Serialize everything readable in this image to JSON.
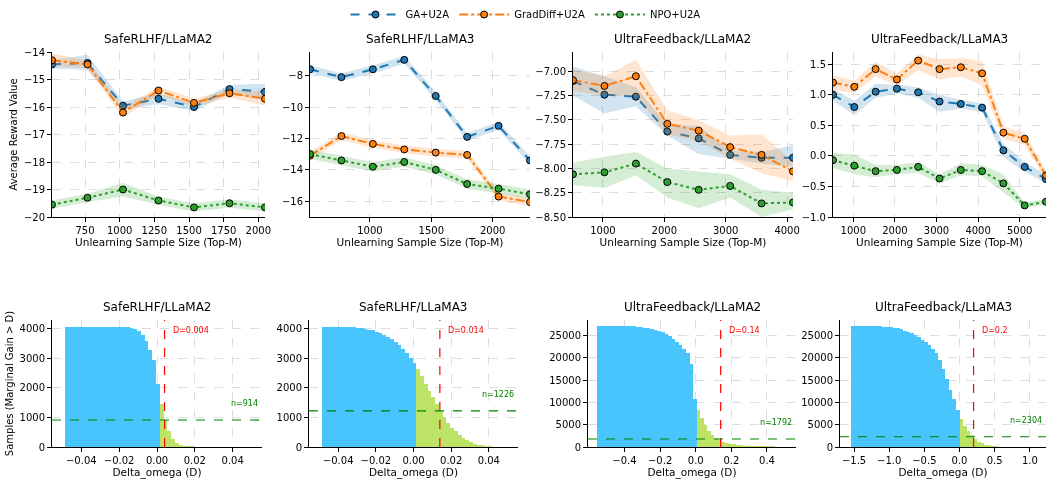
{
  "chart_data": [
    {
      "type": "line",
      "title": "SafeRLHF/LLaMA2",
      "xlabel": "Unlearning Sample Size (Top-M)",
      "ylabel": "Average Reward Value",
      "legend": "top",
      "grid": true,
      "marker": "circle",
      "x": [
        512,
        768,
        1024,
        1280,
        1536,
        1792,
        2048
      ],
      "xlim": [
        512,
        2048
      ],
      "xticks": [
        750,
        1000,
        1250,
        1500,
        1750,
        2000
      ],
      "ylim": [
        -20,
        -14
      ],
      "yticks": [
        {
          "value": -20,
          "label": "−20"
        },
        {
          "value": -19,
          "label": "−19"
        },
        {
          "value": -18,
          "label": "−18"
        },
        {
          "value": -17,
          "label": "−17"
        },
        {
          "value": -16,
          "label": "−16"
        },
        {
          "value": -15,
          "label": "−15"
        },
        {
          "value": -14,
          "label": "−14"
        }
      ],
      "series": [
        {
          "name": "GA+U2A",
          "color": "#1f77b4",
          "line_style": "dashed",
          "values": [
            -14.45,
            -14.4,
            -15.95,
            -15.7,
            -16.0,
            -15.35,
            -15.45
          ],
          "lower": [
            -14.6,
            -14.65,
            -16.1,
            -15.9,
            -16.15,
            -15.5,
            -15.75
          ],
          "upper": [
            -14.3,
            -14.1,
            -15.8,
            -15.5,
            -15.85,
            -15.2,
            -15.15
          ]
        },
        {
          "name": "GradDiff+U2A",
          "color": "#ff7f0e",
          "line_style": "dashdot",
          "values": [
            -14.3,
            -14.45,
            -16.2,
            -15.4,
            -15.85,
            -15.5,
            -15.7
          ],
          "lower": [
            -14.5,
            -14.6,
            -16.4,
            -15.55,
            -16.0,
            -15.65,
            -15.95
          ],
          "upper": [
            -14.05,
            -14.3,
            -16.0,
            -15.25,
            -15.7,
            -15.35,
            -15.45
          ]
        },
        {
          "name": "NPO+U2A",
          "color": "#2ca02c",
          "line_style": "dotted",
          "values": [
            -19.55,
            -19.3,
            -19.0,
            -19.4,
            -19.65,
            -19.5,
            -19.65
          ],
          "lower": [
            -19.7,
            -19.45,
            -19.25,
            -19.55,
            -19.8,
            -19.65,
            -19.8
          ],
          "upper": [
            -19.4,
            -19.15,
            -18.75,
            -19.25,
            -19.5,
            -19.35,
            -19.5
          ]
        }
      ]
    },
    {
      "type": "line",
      "title": "SafeRLHF/LLaMA3",
      "xlabel": "Unlearning Sample Size (Top-M)",
      "grid": true,
      "marker": "circle",
      "x": [
        512,
        768,
        1024,
        1280,
        1536,
        1792,
        2048,
        2304
      ],
      "xlim": [
        512,
        2304
      ],
      "xticks": [
        1000,
        1500,
        2000
      ],
      "ylim": [
        -17,
        -6.5
      ],
      "yticks": [
        {
          "value": -16,
          "label": "−16"
        },
        {
          "value": -14,
          "label": "−14"
        },
        {
          "value": -12,
          "label": "−12"
        },
        {
          "value": -10,
          "label": "−10"
        },
        {
          "value": -8,
          "label": "−8"
        }
      ],
      "series": [
        {
          "color": "#1f77b4",
          "line_style": "dashed",
          "values": [
            -7.6,
            -8.1,
            -7.6,
            -7.0,
            -9.3,
            -11.9,
            -11.2,
            -13.4
          ],
          "lower": [
            -7.85,
            -8.35,
            -7.85,
            -7.25,
            -9.55,
            -12.15,
            -11.45,
            -13.65
          ],
          "upper": [
            -7.35,
            -7.85,
            -7.35,
            -6.75,
            -9.05,
            -11.65,
            -10.95,
            -13.15
          ]
        },
        {
          "color": "#ff7f0e",
          "line_style": "dashdot",
          "values": [
            -13.1,
            -11.85,
            -12.35,
            -12.7,
            -12.9,
            -13.05,
            -15.7,
            -16.05
          ],
          "lower": [
            -13.35,
            -12.1,
            -12.6,
            -12.95,
            -13.15,
            -13.3,
            -15.95,
            -16.3
          ],
          "upper": [
            -12.85,
            -11.6,
            -12.1,
            -12.45,
            -12.65,
            -12.8,
            -15.45,
            -15.8
          ]
        },
        {
          "color": "#2ca02c",
          "line_style": "dotted",
          "values": [
            -13.0,
            -13.4,
            -13.8,
            -13.5,
            -14.0,
            -14.9,
            -15.2,
            -15.55
          ],
          "lower": [
            -13.3,
            -13.7,
            -14.1,
            -13.8,
            -14.3,
            -15.2,
            -15.5,
            -15.85
          ],
          "upper": [
            -12.7,
            -13.1,
            -13.5,
            -13.2,
            -13.7,
            -14.6,
            -14.9,
            -15.25
          ]
        }
      ]
    },
    {
      "type": "line",
      "title": "UltraFeedback/LLaMA2",
      "xlabel": "Unlearning Sample Size (Top-M)",
      "grid": true,
      "marker": "circle",
      "x": [
        512,
        1024,
        1536,
        2048,
        2560,
        3072,
        3584,
        4096
      ],
      "xlim": [
        512,
        4096
      ],
      "xticks": [
        1000,
        2000,
        3000,
        4000
      ],
      "ylim": [
        -8.5,
        -6.8
      ],
      "yticks": [
        {
          "value": -8.5,
          "label": "−8.50"
        },
        {
          "value": -8.25,
          "label": "−8.25"
        },
        {
          "value": -8.0,
          "label": "−8.00"
        },
        {
          "value": -7.75,
          "label": "−7.75"
        },
        {
          "value": -7.5,
          "label": "−7.50"
        },
        {
          "value": -7.25,
          "label": "−7.25"
        },
        {
          "value": -7.0,
          "label": "−7.00"
        }
      ],
      "series": [
        {
          "color": "#1f77b4",
          "line_style": "dashed",
          "values": [
            -7.1,
            -7.24,
            -7.26,
            -7.62,
            -7.69,
            -7.86,
            -7.89,
            -7.89
          ],
          "lower": [
            -7.25,
            -7.43,
            -7.36,
            -7.66,
            -7.85,
            -7.9,
            -7.95,
            -7.98
          ],
          "upper": [
            -6.95,
            -7.05,
            -7.16,
            -7.55,
            -7.56,
            -7.82,
            -7.83,
            -7.76
          ]
        },
        {
          "color": "#ff7f0e",
          "line_style": "dashdot",
          "values": [
            -7.09,
            -7.15,
            -7.05,
            -7.54,
            -7.61,
            -7.78,
            -7.86,
            -8.03
          ],
          "lower": [
            -7.2,
            -7.25,
            -7.25,
            -7.65,
            -7.72,
            -7.9,
            -8.05,
            -8.13
          ],
          "upper": [
            -6.98,
            -7.05,
            -6.88,
            -7.4,
            -7.5,
            -7.66,
            -7.65,
            -7.93
          ]
        },
        {
          "color": "#2ca02c",
          "line_style": "dotted",
          "values": [
            -8.06,
            -8.04,
            -7.95,
            -8.14,
            -8.22,
            -8.18,
            -8.36,
            -8.35
          ],
          "lower": [
            -8.17,
            -8.2,
            -8.07,
            -8.3,
            -8.41,
            -8.3,
            -8.5,
            -8.42
          ],
          "upper": [
            -7.94,
            -7.88,
            -7.83,
            -8.0,
            -8.03,
            -8.06,
            -8.22,
            -8.25
          ]
        }
      ]
    },
    {
      "type": "line",
      "title": "UltraFeedback/LLaMA3",
      "xlabel": "Unlearning Sample Size (Top-M)",
      "grid": true,
      "marker": "circle",
      "x": [
        512,
        1024,
        1536,
        2048,
        2560,
        3072,
        3584,
        4096,
        4608,
        5120,
        5632
      ],
      "xlim": [
        512,
        5632
      ],
      "xticks": [
        1000,
        2000,
        3000,
        4000,
        5000
      ],
      "ylim": [
        -1.0,
        1.7
      ],
      "yticks": [
        {
          "value": -1.0,
          "label": "−1.0"
        },
        {
          "value": -0.5,
          "label": "−0.5"
        },
        {
          "value": 0,
          "label": "0.0"
        },
        {
          "value": 0.5,
          "label": "0.5"
        },
        {
          "value": 1.0,
          "label": "1.0"
        },
        {
          "value": 1.5,
          "label": "1.5"
        }
      ],
      "series": [
        {
          "color": "#1f77b4",
          "line_style": "dashed",
          "values": [
            1.0,
            0.8,
            1.05,
            1.1,
            1.04,
            0.89,
            0.85,
            0.79,
            0.09,
            -0.18,
            -0.38
          ],
          "lower": [
            0.9,
            0.67,
            0.95,
            1.02,
            0.95,
            0.72,
            0.78,
            0.72,
            -0.02,
            -0.26,
            -0.45
          ],
          "upper": [
            1.1,
            0.9,
            1.18,
            1.17,
            1.12,
            1.0,
            0.92,
            0.86,
            0.2,
            -0.1,
            -0.3
          ]
        },
        {
          "color": "#ff7f0e",
          "line_style": "dashdot",
          "values": [
            1.2,
            1.13,
            1.42,
            1.25,
            1.56,
            1.42,
            1.45,
            1.35,
            0.38,
            0.28,
            -0.32
          ],
          "lower": [
            1.08,
            1.03,
            1.3,
            1.15,
            1.4,
            1.25,
            1.3,
            1.15,
            0.28,
            0.18,
            -0.4
          ],
          "upper": [
            1.32,
            1.23,
            1.54,
            1.35,
            1.66,
            1.58,
            1.6,
            1.55,
            0.48,
            0.38,
            -0.24
          ]
        },
        {
          "color": "#2ca02c",
          "line_style": "dotted",
          "values": [
            -0.07,
            -0.16,
            -0.25,
            -0.23,
            -0.18,
            -0.37,
            -0.23,
            -0.25,
            -0.45,
            -0.81,
            -0.75
          ],
          "lower": [
            -0.2,
            -0.3,
            -0.35,
            -0.3,
            -0.28,
            -0.45,
            -0.32,
            -0.33,
            -0.6,
            -0.85,
            -0.8
          ],
          "upper": [
            0.05,
            0.02,
            -0.15,
            -0.15,
            -0.1,
            -0.3,
            -0.12,
            -0.15,
            -0.3,
            -0.77,
            -0.7
          ]
        }
      ]
    },
    {
      "type": "histogram",
      "title": "SafeRLHF/LLaMA2",
      "xlabel": "Delta_omega (D)",
      "ylabel": "Samples (Marginal Gain > D)",
      "grid": true,
      "xlim": [
        -0.0555,
        0.0555
      ],
      "xticks": [
        {
          "value": -0.04,
          "label": "−0.04"
        },
        {
          "value": -0.02,
          "label": "−0.02"
        },
        {
          "value": 0,
          "label": "0.00"
        },
        {
          "value": 0.02,
          "label": "0.02"
        },
        {
          "value": 0.04,
          "label": "0.04"
        }
      ],
      "ylim": [
        0,
        4300
      ],
      "yticks": [
        0,
        1000,
        2000,
        3000,
        4000
      ],
      "bins": [
        -0.0485,
        -0.0465,
        -0.0445,
        -0.0425,
        -0.0405,
        -0.0385,
        -0.0365,
        -0.0345,
        -0.0325,
        -0.0305,
        -0.0285,
        -0.0265,
        -0.0245,
        -0.0225,
        -0.0205,
        -0.0185,
        -0.0165,
        -0.0145,
        -0.0125,
        -0.0105,
        -0.0085,
        -0.0065,
        -0.0045,
        -0.0025,
        -0.0005,
        0.0015,
        0.0035,
        0.0055,
        0.0075,
        0.0095,
        0.0115,
        0.0135,
        0.0155,
        0.0175,
        0.0195
      ],
      "values": [
        4080,
        4080,
        4080,
        4080,
        4080,
        4080,
        4080,
        4080,
        4080,
        4080,
        4080,
        4080,
        4080,
        4080,
        4080,
        4080,
        4060,
        4040,
        4000,
        3930,
        3800,
        3600,
        3300,
        2950,
        2150,
        1440,
        920,
        540,
        270,
        130,
        60,
        30,
        20,
        10
      ],
      "colors": [
        "#47c5fc",
        "#47c5fc",
        "#47c5fc",
        "#47c5fc",
        "#47c5fc",
        "#47c5fc",
        "#47c5fc",
        "#47c5fc",
        "#47c5fc",
        "#47c5fc",
        "#47c5fc",
        "#47c5fc",
        "#47c5fc",
        "#47c5fc",
        "#47c5fc",
        "#47c5fc",
        "#47c5fc",
        "#47c5fc",
        "#47c5fc",
        "#47c5fc",
        "#47c5fc",
        "#47c5fc",
        "#47c5fc",
        "#47c5fc",
        "#47c5fc",
        "#bde366",
        "#bde366",
        "#bde366",
        "#bde366",
        "#bde366",
        "#bde366",
        "#bde366",
        "#bde366",
        "#bde366"
      ],
      "ref_lines": [
        {
          "axis": "x",
          "value": 0.004,
          "label": "D=0.004",
          "color": "#ff0000",
          "line_style": "dashed"
        },
        {
          "axis": "y",
          "value": 914,
          "label": "n=914",
          "color": "#008000",
          "line_style": "dashed"
        }
      ]
    },
    {
      "type": "histogram",
      "title": "SafeRLHF/LLaMA3",
      "xlabel": "Delta_omega (D)",
      "grid": true,
      "xlim": [
        -0.0555,
        0.0555
      ],
      "xticks": [
        {
          "value": -0.04,
          "label": "−0.04"
        },
        {
          "value": -0.02,
          "label": "−0.02"
        },
        {
          "value": 0,
          "label": "0.00"
        },
        {
          "value": 0.02,
          "label": "0.02"
        },
        {
          "value": 0.04,
          "label": "0.04"
        }
      ],
      "ylim": [
        0,
        4300
      ],
      "yticks": [
        0,
        1000,
        2000,
        3000,
        4000
      ],
      "bins": [
        -0.0485,
        -0.0465,
        -0.0445,
        -0.0425,
        -0.0405,
        -0.0385,
        -0.0365,
        -0.0345,
        -0.0325,
        -0.0305,
        -0.0285,
        -0.0265,
        -0.0245,
        -0.0225,
        -0.0205,
        -0.0185,
        -0.0165,
        -0.0145,
        -0.0125,
        -0.0105,
        -0.0085,
        -0.0065,
        -0.0045,
        -0.0025,
        -0.0005,
        0.0015,
        0.0035,
        0.0055,
        0.0075,
        0.0095,
        0.0115,
        0.0135,
        0.0155,
        0.0175,
        0.0195,
        0.0215,
        0.0235,
        0.0255,
        0.0275,
        0.0295,
        0.0315,
        0.0335,
        0.0355,
        0.0375,
        0.0395,
        0.0415
      ],
      "values": [
        4080,
        4080,
        4080,
        4080,
        4080,
        4070,
        4070,
        4060,
        4050,
        4040,
        4020,
        4000,
        3970,
        3950,
        3900,
        3850,
        3800,
        3720,
        3640,
        3550,
        3450,
        3310,
        3180,
        3020,
        2840,
        2650,
        2400,
        2150,
        1900,
        1680,
        1440,
        1220,
        1000,
        820,
        660,
        530,
        410,
        310,
        230,
        160,
        110,
        80,
        50,
        30,
        20
      ],
      "colors": [
        "#47c5fc",
        "#47c5fc",
        "#47c5fc",
        "#47c5fc",
        "#47c5fc",
        "#47c5fc",
        "#47c5fc",
        "#47c5fc",
        "#47c5fc",
        "#47c5fc",
        "#47c5fc",
        "#47c5fc",
        "#47c5fc",
        "#47c5fc",
        "#47c5fc",
        "#47c5fc",
        "#47c5fc",
        "#47c5fc",
        "#47c5fc",
        "#47c5fc",
        "#47c5fc",
        "#47c5fc",
        "#47c5fc",
        "#47c5fc",
        "#47c5fc",
        "#bde366",
        "#bde366",
        "#bde366",
        "#bde366",
        "#bde366",
        "#bde366",
        "#bde366",
        "#bde366",
        "#bde366",
        "#bde366",
        "#bde366",
        "#bde366",
        "#bde366",
        "#bde366",
        "#bde366",
        "#bde366",
        "#bde366",
        "#bde366",
        "#bde366",
        "#bde366"
      ],
      "ref_lines": [
        {
          "axis": "x",
          "value": 0.014,
          "label": "D=0.014",
          "color": "#ff0000",
          "line_style": "dashed"
        },
        {
          "axis": "y",
          "value": 1226,
          "label": "n=1226",
          "color": "#008000",
          "line_style": "dashed"
        }
      ]
    },
    {
      "type": "histogram",
      "title": "UltraFeedback/LLaMA2",
      "xlabel": "Delta_omega (D)",
      "grid": true,
      "xlim": [
        -0.605,
        0.563
      ],
      "xticks": [
        {
          "value": -0.4,
          "label": "−0.4"
        },
        {
          "value": -0.2,
          "label": "−0.2"
        },
        {
          "value": 0,
          "label": "0.0"
        },
        {
          "value": 0.2,
          "label": "0.2"
        },
        {
          "value": 0.4,
          "label": "0.4"
        }
      ],
      "ylim": [
        0,
        28500
      ],
      "yticks": [
        0,
        5000,
        10000,
        15000,
        20000,
        25000
      ],
      "bins": [
        -0.555,
        -0.535,
        -0.515,
        -0.495,
        -0.475,
        -0.455,
        -0.435,
        -0.415,
        -0.395,
        -0.375,
        -0.355,
        -0.335,
        -0.315,
        -0.295,
        -0.275,
        -0.255,
        -0.235,
        -0.215,
        -0.195,
        -0.175,
        -0.155,
        -0.135,
        -0.115,
        -0.095,
        -0.075,
        -0.055,
        -0.035,
        -0.015,
        0.005,
        0.025,
        0.045,
        0.065,
        0.085,
        0.105,
        0.125,
        0.145,
        0.165,
        0.185,
        0.205,
        0.225,
        0.245,
        0.265,
        0.285,
        0.305,
        0.325,
        0.345,
        0.365,
        0.385,
        0.405,
        0.425,
        0.445
      ],
      "values": [
        27200,
        27200,
        27200,
        27200,
        27200,
        27200,
        27200,
        27200,
        27200,
        27200,
        27100,
        27000,
        26900,
        26800,
        26700,
        26500,
        26300,
        26100,
        25800,
        25400,
        24900,
        24300,
        23600,
        22900,
        22000,
        21000,
        18700,
        10800,
        8300,
        6500,
        4900,
        3600,
        2800,
        2100,
        1500,
        1200,
        900,
        700,
        600,
        400,
        300,
        200,
        200,
        100,
        100,
        100,
        100,
        100,
        100,
        100
      ],
      "colors": [
        "#47c5fc",
        "#47c5fc",
        "#47c5fc",
        "#47c5fc",
        "#47c5fc",
        "#47c5fc",
        "#47c5fc",
        "#47c5fc",
        "#47c5fc",
        "#47c5fc",
        "#47c5fc",
        "#47c5fc",
        "#47c5fc",
        "#47c5fc",
        "#47c5fc",
        "#47c5fc",
        "#47c5fc",
        "#47c5fc",
        "#47c5fc",
        "#47c5fc",
        "#47c5fc",
        "#47c5fc",
        "#47c5fc",
        "#47c5fc",
        "#47c5fc",
        "#47c5fc",
        "#47c5fc",
        "#47c5fc",
        "#bde366",
        "#bde366",
        "#bde366",
        "#bde366",
        "#bde366",
        "#bde366",
        "#bde366",
        "#bde366",
        "#bde366",
        "#bde366",
        "#bde366",
        "#bde366",
        "#bde366",
        "#bde366",
        "#bde366",
        "#bde366",
        "#bde366",
        "#bde366",
        "#bde366",
        "#bde366",
        "#bde366",
        "#bde366"
      ],
      "ref_lines": [
        {
          "axis": "x",
          "value": 0.14,
          "label": "D=0.14",
          "color": "#ff0000",
          "line_style": "dashed"
        },
        {
          "axis": "y",
          "value": 1792,
          "label": "n=1792",
          "color": "#008000",
          "line_style": "dashed"
        }
      ]
    },
    {
      "type": "histogram",
      "title": "UltraFeedback/LLaMA3",
      "xlabel": "Delta_omega (D)",
      "grid": true,
      "xlim": [
        -1.7,
        1.23
      ],
      "xticks": [
        {
          "value": -1.5,
          "label": "−1.5"
        },
        {
          "value": -1.0,
          "label": "−1.0"
        },
        {
          "value": -0.5,
          "label": "−0.5"
        },
        {
          "value": 0,
          "label": "0.0"
        },
        {
          "value": 0.5,
          "label": "0.5"
        },
        {
          "value": 1.0,
          "label": "1.0"
        }
      ],
      "ylim": [
        0,
        28500
      ],
      "yticks": [
        0,
        5000,
        10000,
        15000,
        20000,
        25000
      ],
      "bins": [
        -1.55,
        -1.5,
        -1.45,
        -1.4,
        -1.35,
        -1.3,
        -1.25,
        -1.2,
        -1.15,
        -1.1,
        -1.05,
        -1.0,
        -0.95,
        -0.9,
        -0.85,
        -0.8,
        -0.75,
        -0.7,
        -0.65,
        -0.6,
        -0.55,
        -0.5,
        -0.45,
        -0.4,
        -0.35,
        -0.3,
        -0.25,
        -0.2,
        -0.15,
        -0.1,
        -0.05,
        0.0,
        0.05,
        0.1,
        0.15,
        0.2,
        0.25,
        0.3,
        0.35,
        0.4,
        0.45,
        0.5,
        0.55
      ],
      "values": [
        27200,
        27200,
        27200,
        27200,
        27200,
        27200,
        27200,
        27100,
        27100,
        27000,
        27000,
        26900,
        26700,
        26600,
        26400,
        26100,
        25900,
        25600,
        25200,
        24700,
        24100,
        23500,
        22800,
        22000,
        21000,
        19500,
        17400,
        15200,
        12900,
        10800,
        8300,
        6300,
        4800,
        3500,
        2600,
        1800,
        1200,
        800,
        500,
        300,
        200,
        100
      ],
      "colors": [
        "#47c5fc",
        "#47c5fc",
        "#47c5fc",
        "#47c5fc",
        "#47c5fc",
        "#47c5fc",
        "#47c5fc",
        "#47c5fc",
        "#47c5fc",
        "#47c5fc",
        "#47c5fc",
        "#47c5fc",
        "#47c5fc",
        "#47c5fc",
        "#47c5fc",
        "#47c5fc",
        "#47c5fc",
        "#47c5fc",
        "#47c5fc",
        "#47c5fc",
        "#47c5fc",
        "#47c5fc",
        "#47c5fc",
        "#47c5fc",
        "#47c5fc",
        "#47c5fc",
        "#47c5fc",
        "#47c5fc",
        "#47c5fc",
        "#47c5fc",
        "#47c5fc",
        "#bde366",
        "#bde366",
        "#bde366",
        "#bde366",
        "#bde366",
        "#bde366",
        "#bde366",
        "#bde366",
        "#bde366",
        "#bde366",
        "#bde366"
      ],
      "ref_lines": [
        {
          "axis": "x",
          "value": 0.2,
          "label": "D=0.2",
          "color": "#ff0000",
          "line_style": "dashed"
        },
        {
          "axis": "y",
          "value": 2304,
          "label": "n=2304",
          "color": "#008000",
          "line_style": "dashed"
        }
      ]
    }
  ]
}
